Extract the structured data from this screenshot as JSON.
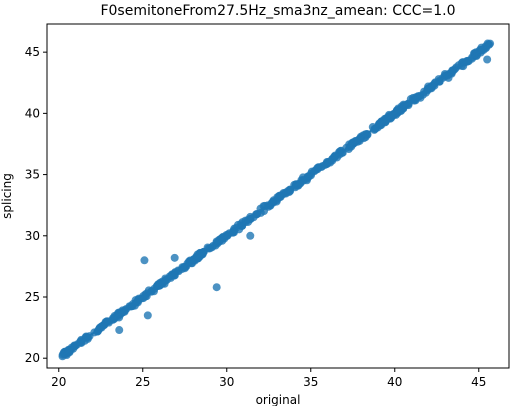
{
  "chart_data": {
    "type": "scatter",
    "title": "F0semitoneFrom27.5Hz_sma3nz_amean: CCC=1.0",
    "xlabel": "original",
    "ylabel": "splicing",
    "xlim": [
      19.3,
      46.8
    ],
    "ylim": [
      19.2,
      47.3
    ],
    "xticks": [
      20,
      25,
      30,
      35,
      40,
      45
    ],
    "yticks": [
      20,
      25,
      30,
      35,
      40,
      45
    ],
    "grid": false,
    "marker_color": "#1f77b4",
    "regression_line": {
      "x": [
        20.2,
        45.8
      ],
      "y": [
        20.2,
        45.8
      ]
    },
    "outliers": [
      {
        "x": 25.1,
        "y": 28.0
      },
      {
        "x": 25.3,
        "y": 23.5
      },
      {
        "x": 23.6,
        "y": 22.3
      },
      {
        "x": 29.4,
        "y": 25.8
      },
      {
        "x": 31.4,
        "y": 30.0
      },
      {
        "x": 26.9,
        "y": 28.2
      },
      {
        "x": 43.2,
        "y": 42.9
      },
      {
        "x": 45.5,
        "y": 44.4
      }
    ]
  }
}
